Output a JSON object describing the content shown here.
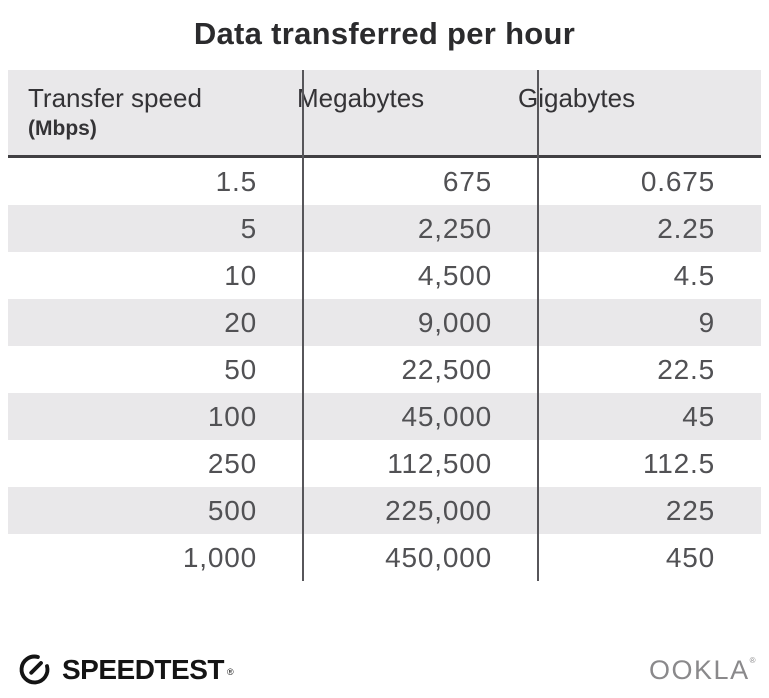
{
  "title": "Data transferred per hour",
  "table": {
    "headers": [
      {
        "label": "Transfer speed",
        "sub": "(Mbps)"
      },
      {
        "label": "Megabytes",
        "sub": ""
      },
      {
        "label": "Gigabytes",
        "sub": ""
      }
    ],
    "rows": [
      [
        "1.5",
        "675",
        "0.675"
      ],
      [
        "5",
        "2,250",
        "2.25"
      ],
      [
        "10",
        "4,500",
        "4.5"
      ],
      [
        "20",
        "9,000",
        "9"
      ],
      [
        "50",
        "22,500",
        "22.5"
      ],
      [
        "100",
        "45,000",
        "45"
      ],
      [
        "250",
        "112,500",
        "112.5"
      ],
      [
        "500",
        "225,000",
        "225"
      ],
      [
        "1,000",
        "450,000",
        "450"
      ]
    ]
  },
  "footer": {
    "speedtest_label": "SPEEDTEST",
    "speedtest_mark": "®",
    "ookla_label": "OOKLA",
    "ookla_mark": "®"
  },
  "colors": {
    "stripe": "#e9e8ea",
    "divider": "#57565a",
    "header_border": "#414043",
    "title_text": "#2b2b2d",
    "body_text": "#515154",
    "speedtest_black": "#141414",
    "ookla_gray": "#8a898b"
  },
  "chart_data": {
    "type": "table",
    "title": "Data transferred per hour",
    "columns": [
      "Transfer speed (Mbps)",
      "Megabytes",
      "Gigabytes"
    ],
    "rows": [
      [
        1.5,
        675,
        0.675
      ],
      [
        5,
        2250,
        2.25
      ],
      [
        10,
        4500,
        4.5
      ],
      [
        20,
        9000,
        9
      ],
      [
        50,
        22500,
        22.5
      ],
      [
        100,
        45000,
        45
      ],
      [
        250,
        112500,
        112.5
      ],
      [
        500,
        225000,
        225
      ],
      [
        1000,
        450000,
        450
      ]
    ],
    "layout": {
      "zebra_striping": true,
      "column_dividers": true,
      "header_background": "#e9e8ea"
    }
  }
}
